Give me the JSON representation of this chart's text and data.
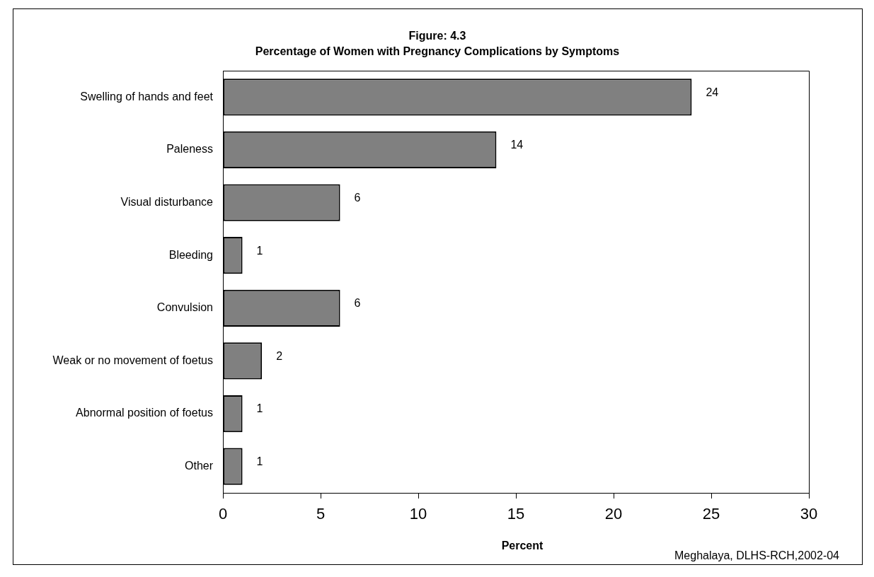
{
  "chart_data": {
    "type": "bar",
    "orientation": "horizontal",
    "title": "Figure: 4.3",
    "subtitle": "Percentage of Women with Pregnancy Complications by Symptoms",
    "categories": [
      "Swelling of hands and feet",
      "Paleness",
      "Visual disturbance",
      "Bleeding",
      "Convulsion",
      "Weak or no movement of foetus",
      "Abnormal position of foetus",
      "Other"
    ],
    "values": [
      24,
      14,
      6,
      1,
      6,
      2,
      1,
      1
    ],
    "color": "#808080",
    "data_labels": true,
    "xlim": [
      0,
      30
    ],
    "xticks": [
      0,
      5,
      10,
      15,
      20,
      25,
      30
    ],
    "xlabel": "Percent",
    "grid": false,
    "legend": false,
    "annotations": [
      "Meghalaya, DLHS-RCH,2002-04"
    ]
  }
}
